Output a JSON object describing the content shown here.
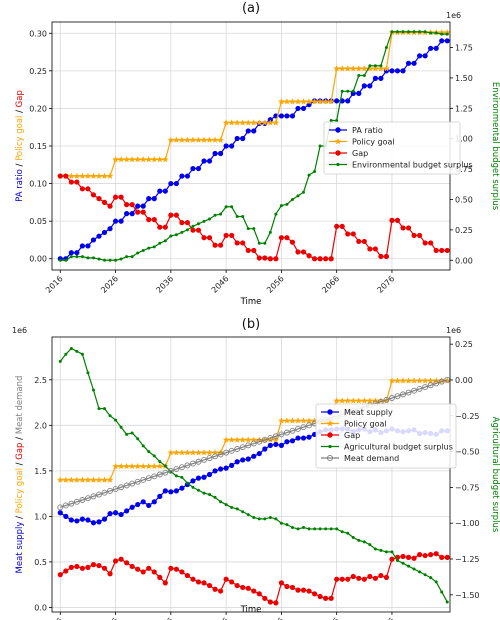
{
  "chart_data": [
    {
      "type": "line",
      "panel_label": "(a)",
      "xlabel": "Time",
      "ylabel_parts": [
        {
          "text": "PA ratio",
          "color": "#0000cc"
        },
        {
          "text": " / ",
          "color": "#000000"
        },
        {
          "text": "Policy goal",
          "color": "#ffa500"
        },
        {
          "text": " / ",
          "color": "#000000"
        },
        {
          "text": "Gap",
          "color": "#e00000"
        }
      ],
      "y2label": "Environmental budget surplus",
      "y2_scale_label": "1e6",
      "xticks": [
        2016,
        2026,
        2036,
        2046,
        2056,
        2066,
        2076
      ],
      "xlim": [
        2014.5,
        2086.5
      ],
      "ylim": [
        -0.015,
        0.315
      ],
      "yticks": [
        0.0,
        0.05,
        0.1,
        0.15,
        0.2,
        0.25,
        0.3
      ],
      "ytick_labels": [
        "0.00",
        "0.05",
        "0.10",
        "0.15",
        "0.20",
        "0.25",
        "0.30"
      ],
      "y2lim": [
        -0.08,
        1.96
      ],
      "y2ticks": [
        0.0,
        0.25,
        0.5,
        0.75,
        1.0,
        1.25,
        1.5,
        1.75
      ],
      "y2tick_labels": [
        "0.00",
        "0.25",
        "0.50",
        "0.75",
        "1.00",
        "1.25",
        "1.50",
        "1.75"
      ],
      "grid": true,
      "legend_position": "center-right",
      "x_start": 2016,
      "x_step": 1,
      "series": [
        {
          "name": "PA ratio",
          "color": "#0000ee",
          "marker": "circle",
          "axis": "left",
          "values": [
            0.0,
            0.0,
            0.008,
            0.008,
            0.017,
            0.017,
            0.025,
            0.03,
            0.035,
            0.04,
            0.05,
            0.05,
            0.06,
            0.06,
            0.07,
            0.07,
            0.08,
            0.08,
            0.09,
            0.09,
            0.1,
            0.1,
            0.11,
            0.11,
            0.12,
            0.12,
            0.13,
            0.13,
            0.14,
            0.14,
            0.15,
            0.15,
            0.16,
            0.16,
            0.17,
            0.17,
            0.18,
            0.18,
            0.185,
            0.19,
            0.19,
            0.19,
            0.19,
            0.2,
            0.2,
            0.205,
            0.21,
            0.21,
            0.21,
            0.21,
            0.21,
            0.21,
            0.21,
            0.22,
            0.22,
            0.23,
            0.23,
            0.24,
            0.24,
            0.25,
            0.25,
            0.25,
            0.25,
            0.26,
            0.26,
            0.27,
            0.27,
            0.28,
            0.28,
            0.29,
            0.29
          ]
        },
        {
          "name": "Policy goal",
          "color": "#ffa500",
          "marker": "star",
          "axis": "left",
          "values": [
            0.11,
            0.11,
            0.11,
            0.11,
            0.11,
            0.11,
            0.11,
            0.11,
            0.11,
            0.11,
            0.132,
            0.132,
            0.132,
            0.132,
            0.132,
            0.132,
            0.132,
            0.132,
            0.132,
            0.132,
            0.158,
            0.158,
            0.158,
            0.158,
            0.158,
            0.158,
            0.158,
            0.158,
            0.158,
            0.158,
            0.181,
            0.181,
            0.181,
            0.181,
            0.181,
            0.181,
            0.181,
            0.181,
            0.181,
            0.181,
            0.209,
            0.209,
            0.209,
            0.209,
            0.209,
            0.209,
            0.209,
            0.209,
            0.209,
            0.209,
            0.253,
            0.253,
            0.253,
            0.253,
            0.253,
            0.253,
            0.253,
            0.253,
            0.253,
            0.253,
            0.301,
            0.301,
            0.301,
            0.301,
            0.301,
            0.301,
            0.301,
            0.301,
            0.301,
            0.301,
            0.301
          ]
        },
        {
          "name": "Gap",
          "color": "#ee0000",
          "marker": "circle",
          "axis": "left",
          "values": [
            0.11,
            0.11,
            0.102,
            0.102,
            0.093,
            0.093,
            0.085,
            0.08,
            0.075,
            0.07,
            0.082,
            0.082,
            0.072,
            0.072,
            0.062,
            0.062,
            0.052,
            0.052,
            0.042,
            0.042,
            0.058,
            0.058,
            0.048,
            0.048,
            0.038,
            0.038,
            0.028,
            0.028,
            0.018,
            0.018,
            0.031,
            0.031,
            0.021,
            0.021,
            0.011,
            0.011,
            0.001,
            0.001,
            0.0,
            0.0,
            0.028,
            0.028,
            0.022,
            0.009,
            0.009,
            0.004,
            0.0,
            0.0,
            0.0,
            0.0,
            0.043,
            0.043,
            0.033,
            0.033,
            0.023,
            0.023,
            0.013,
            0.013,
            0.003,
            0.003,
            0.051,
            0.051,
            0.041,
            0.041,
            0.031,
            0.031,
            0.021,
            0.021,
            0.011,
            0.011,
            0.011
          ]
        },
        {
          "name": "Environmental budget surplus",
          "color": "#008000",
          "marker": "dot",
          "axis": "right",
          "values": [
            0.0,
            0.0,
            0.03,
            0.03,
            0.03,
            0.02,
            0.02,
            0.01,
            0.0,
            0.0,
            0.0,
            0.01,
            0.03,
            0.03,
            0.06,
            0.08,
            0.1,
            0.11,
            0.14,
            0.16,
            0.2,
            0.21,
            0.23,
            0.25,
            0.28,
            0.3,
            0.32,
            0.34,
            0.37,
            0.38,
            0.44,
            0.44,
            0.36,
            0.36,
            0.26,
            0.26,
            0.14,
            0.14,
            0.23,
            0.38,
            0.45,
            0.46,
            0.5,
            0.53,
            0.56,
            0.7,
            0.73,
            0.94,
            0.94,
            1.15,
            1.15,
            1.39,
            1.39,
            1.39,
            1.52,
            1.52,
            1.6,
            1.6,
            1.6,
            1.75,
            1.88,
            1.88,
            1.88,
            1.88,
            1.88,
            1.88,
            1.88,
            1.87,
            1.87,
            1.86,
            1.86
          ]
        }
      ]
    },
    {
      "type": "line",
      "panel_label": "(b)",
      "xlabel": "Time",
      "ylabel_parts": [
        {
          "text": "Meat supply",
          "color": "#0000cc"
        },
        {
          "text": " / ",
          "color": "#000000"
        },
        {
          "text": "Policy goal",
          "color": "#ffa500"
        },
        {
          "text": " / ",
          "color": "#000000"
        },
        {
          "text": "Gap",
          "color": "#e00000"
        },
        {
          "text": " / ",
          "color": "#000000"
        },
        {
          "text": "Meat demand",
          "color": "#808080"
        }
      ],
      "y_scale_label": "1e6",
      "y2label": "Agricultural budget surplus",
      "y2_scale_label": "1e6",
      "xticks": [
        2016,
        2026,
        2036,
        2046,
        2056,
        2066,
        2076
      ],
      "xlim": [
        2014.5,
        2086.5
      ],
      "ylim": [
        -0.05,
        2.97
      ],
      "yticks": [
        0.0,
        0.5,
        1.0,
        1.5,
        2.0,
        2.5
      ],
      "ytick_labels": [
        "0.0",
        "0.5",
        "1.0",
        "1.5",
        "2.0",
        "2.5"
      ],
      "y2lim": [
        -1.62,
        0.3
      ],
      "y2ticks": [
        -1.5,
        -1.25,
        -1.0,
        -0.75,
        -0.5,
        -0.25,
        0.0,
        0.25
      ],
      "y2tick_labels": [
        "−1.50",
        "−1.25",
        "−1.00",
        "−0.75",
        "−0.50",
        "−0.25",
        "0.00",
        "0.25"
      ],
      "grid": true,
      "legend_position": "center-right",
      "x_start": 2016,
      "x_step": 1,
      "series": [
        {
          "name": "Meat supply",
          "color": "#0000ee",
          "marker": "circle",
          "axis": "left",
          "values": [
            1.04,
            1.0,
            0.96,
            0.95,
            0.97,
            0.96,
            0.93,
            0.94,
            0.97,
            1.03,
            1.04,
            1.02,
            1.06,
            1.1,
            1.13,
            1.16,
            1.12,
            1.16,
            1.22,
            1.28,
            1.27,
            1.28,
            1.31,
            1.35,
            1.39,
            1.42,
            1.43,
            1.46,
            1.5,
            1.52,
            1.53,
            1.56,
            1.6,
            1.62,
            1.63,
            1.66,
            1.69,
            1.74,
            1.78,
            1.79,
            1.78,
            1.82,
            1.83,
            1.86,
            1.86,
            1.87,
            1.9,
            1.93,
            1.95,
            1.95,
            1.96,
            1.96,
            1.96,
            1.93,
            1.95,
            1.96,
            1.93,
            1.95,
            1.92,
            1.94,
            1.96,
            1.94,
            1.93,
            1.94,
            1.95,
            1.91,
            1.92,
            1.91,
            1.9,
            1.94,
            1.94
          ]
        },
        {
          "name": "Policy goal",
          "color": "#ffa500",
          "marker": "star",
          "axis": "left",
          "values": [
            1.4,
            1.4,
            1.4,
            1.4,
            1.4,
            1.4,
            1.4,
            1.4,
            1.4,
            1.4,
            1.55,
            1.55,
            1.55,
            1.55,
            1.55,
            1.55,
            1.55,
            1.55,
            1.55,
            1.55,
            1.7,
            1.7,
            1.7,
            1.7,
            1.7,
            1.7,
            1.7,
            1.7,
            1.7,
            1.7,
            1.84,
            1.84,
            1.84,
            1.84,
            1.84,
            1.84,
            1.84,
            1.84,
            1.84,
            1.84,
            2.05,
            2.05,
            2.05,
            2.05,
            2.05,
            2.05,
            2.05,
            2.05,
            2.05,
            2.05,
            2.27,
            2.27,
            2.27,
            2.27,
            2.27,
            2.27,
            2.27,
            2.27,
            2.27,
            2.27,
            2.49,
            2.49,
            2.49,
            2.49,
            2.49,
            2.49,
            2.49,
            2.49,
            2.49,
            2.49,
            2.49
          ]
        },
        {
          "name": "Gap",
          "color": "#ee0000",
          "marker": "circle",
          "axis": "left",
          "values": [
            0.36,
            0.4,
            0.44,
            0.45,
            0.43,
            0.44,
            0.47,
            0.46,
            0.43,
            0.37,
            0.51,
            0.53,
            0.49,
            0.45,
            0.42,
            0.39,
            0.43,
            0.39,
            0.33,
            0.27,
            0.43,
            0.42,
            0.39,
            0.35,
            0.31,
            0.28,
            0.27,
            0.24,
            0.2,
            0.18,
            0.31,
            0.28,
            0.24,
            0.22,
            0.21,
            0.18,
            0.15,
            0.1,
            0.06,
            0.05,
            0.27,
            0.23,
            0.22,
            0.19,
            0.19,
            0.18,
            0.15,
            0.12,
            0.1,
            0.1,
            0.31,
            0.31,
            0.31,
            0.34,
            0.32,
            0.31,
            0.34,
            0.32,
            0.35,
            0.33,
            0.53,
            0.55,
            0.56,
            0.55,
            0.54,
            0.58,
            0.57,
            0.58,
            0.59,
            0.55,
            0.55
          ]
        },
        {
          "name": "Agricultural budget surplus",
          "color": "#008000",
          "marker": "dot",
          "axis": "right",
          "values": [
            0.13,
            0.18,
            0.22,
            0.2,
            0.18,
            0.05,
            -0.07,
            -0.2,
            -0.2,
            -0.25,
            -0.28,
            -0.33,
            -0.38,
            -0.37,
            -0.41,
            -0.46,
            -0.5,
            -0.53,
            -0.57,
            -0.6,
            -0.64,
            -0.67,
            -0.68,
            -0.72,
            -0.75,
            -0.77,
            -0.79,
            -0.8,
            -0.82,
            -0.85,
            -0.87,
            -0.89,
            -0.9,
            -0.92,
            -0.94,
            -0.96,
            -0.97,
            -0.97,
            -0.96,
            -0.97,
            -1.0,
            -1.01,
            -1.03,
            -1.04,
            -1.03,
            -1.04,
            -1.04,
            -1.04,
            -1.04,
            -1.04,
            -1.04,
            -1.06,
            -1.07,
            -1.1,
            -1.12,
            -1.13,
            -1.15,
            -1.18,
            -1.19,
            -1.2,
            -1.2,
            -1.26,
            -1.28,
            -1.3,
            -1.32,
            -1.34,
            -1.36,
            -1.38,
            -1.41,
            -1.48,
            -1.55
          ]
        },
        {
          "name": "Meat demand",
          "color": "#808080",
          "marker": "hollow",
          "axis": "left",
          "values": [
            1.1,
            1.12,
            1.14,
            1.16,
            1.18,
            1.2,
            1.22,
            1.24,
            1.26,
            1.28,
            1.3,
            1.32,
            1.34,
            1.36,
            1.38,
            1.4,
            1.42,
            1.44,
            1.46,
            1.48,
            1.5,
            1.52,
            1.54,
            1.56,
            1.58,
            1.6,
            1.62,
            1.64,
            1.66,
            1.68,
            1.7,
            1.72,
            1.74,
            1.76,
            1.78,
            1.8,
            1.82,
            1.84,
            1.86,
            1.88,
            1.9,
            1.92,
            1.94,
            1.96,
            1.98,
            2.0,
            2.02,
            2.04,
            2.06,
            2.08,
            2.1,
            2.12,
            2.14,
            2.16,
            2.18,
            2.2,
            2.22,
            2.24,
            2.26,
            2.28,
            2.3,
            2.32,
            2.34,
            2.36,
            2.38,
            2.4,
            2.42,
            2.44,
            2.46,
            2.48,
            2.5
          ]
        }
      ]
    }
  ]
}
